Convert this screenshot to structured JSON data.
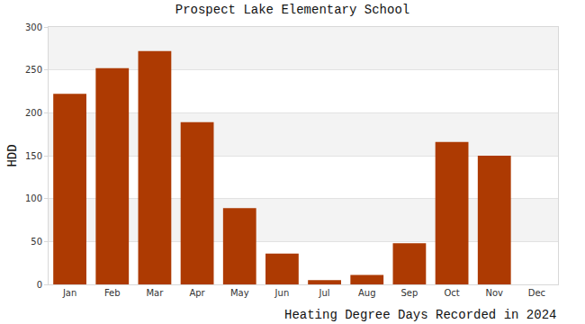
{
  "chart_data": {
    "type": "bar",
    "title": "Prospect Lake Elementary School",
    "xlabel": "Heating Degree Days Recorded in 2024",
    "ylabel": "HDD",
    "categories": [
      "Jan",
      "Feb",
      "Mar",
      "Apr",
      "May",
      "Jun",
      "Jul",
      "Aug",
      "Sep",
      "Oct",
      "Nov",
      "Dec"
    ],
    "values": [
      222,
      252,
      272,
      189,
      89,
      36,
      5,
      11,
      48,
      166,
      150,
      null
    ],
    "color": "#ad3a02",
    "ylim": [
      0,
      300
    ],
    "yticks": [
      0,
      50,
      100,
      150,
      200,
      250,
      300
    ],
    "grid": true
  }
}
